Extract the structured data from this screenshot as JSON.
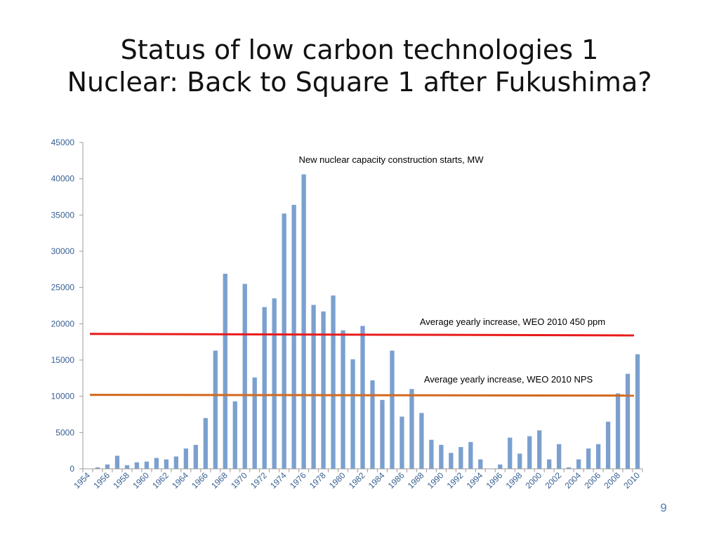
{
  "slide": {
    "title_line1": "Status of low carbon technologies 1",
    "title_line2": "Nuclear:  Back to Square 1 after Fukushima?",
    "page_number": "9"
  },
  "colors": {
    "bar": "#7ba0cf",
    "axis_text": "#365f91",
    "line_450": "#e81b1b",
    "line_nps": "#d2691e",
    "axis": "#9b9b9b"
  },
  "chart_data": {
    "type": "bar",
    "title": "New nuclear capacity construction starts, MW",
    "xlabel": "",
    "ylabel": "",
    "ylim": [
      0,
      45000
    ],
    "yticks": [
      0,
      5000,
      10000,
      15000,
      20000,
      25000,
      30000,
      35000,
      40000,
      45000
    ],
    "grid": false,
    "categories": [
      "1954",
      "1955",
      "1956",
      "1957",
      "1958",
      "1959",
      "1960",
      "1961",
      "1962",
      "1963",
      "1964",
      "1965",
      "1966",
      "1967",
      "1968",
      "1969",
      "1970",
      "1971",
      "1972",
      "1973",
      "1974",
      "1975",
      "1976",
      "1977",
      "1978",
      "1979",
      "1980",
      "1981",
      "1982",
      "1983",
      "1984",
      "1985",
      "1986",
      "1987",
      "1988",
      "1989",
      "1990",
      "1991",
      "1992",
      "1993",
      "1994",
      "1995",
      "1996",
      "1997",
      "1998",
      "1999",
      "2000",
      "2001",
      "2002",
      "2003",
      "2004",
      "2005",
      "2006",
      "2007",
      "2008",
      "2009",
      "2010"
    ],
    "tick_labels": [
      "1954",
      "1956",
      "1958",
      "1960",
      "1962",
      "1964",
      "1966",
      "1968",
      "1970",
      "1972",
      "1974",
      "1976",
      "1978",
      "1980",
      "1982",
      "1984",
      "1986",
      "1988",
      "1990",
      "1992",
      "1994",
      "1996",
      "1998",
      "2000",
      "2002",
      "2004",
      "2006",
      "2008",
      "2010"
    ],
    "values": [
      0,
      200,
      600,
      1800,
      500,
      900,
      1000,
      1500,
      1300,
      1700,
      2800,
      3300,
      7000,
      16300,
      26900,
      9300,
      25500,
      12600,
      22300,
      23500,
      35200,
      36400,
      40600,
      22600,
      21700,
      23900,
      19100,
      15100,
      19700,
      12200,
      9500,
      16300,
      7200,
      11000,
      7700,
      4000,
      3300,
      2200,
      3000,
      3700,
      1300,
      0,
      600,
      4300,
      2100,
      4500,
      5300,
      1300,
      3400,
      200,
      1300,
      2800,
      3400,
      6500,
      10400,
      13100,
      15800
    ],
    "reference_lines": [
      {
        "label": "Average yearly increase, WEO 2010 450 ppm",
        "y_start": 18600,
        "y_end": 18400
      },
      {
        "label": "Average yearly increase, WEO 2010 NPS",
        "y_start": 10200,
        "y_end": 10100
      }
    ]
  }
}
